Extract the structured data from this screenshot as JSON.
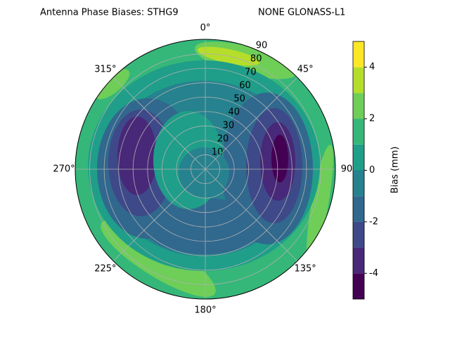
{
  "chart_data": {
    "type": "polar-contour",
    "title": "Antenna Phase Biases: STHG9",
    "subtitle": "NONE GLONASS-L1",
    "rlim": [
      0,
      90
    ],
    "rticks": [
      10,
      20,
      30,
      40,
      50,
      60,
      70,
      80,
      90
    ],
    "thetaticks": [
      {
        "value": 0,
        "label": "0°"
      },
      {
        "value": 45,
        "label": "45°"
      },
      {
        "value": 90,
        "label": "90"
      },
      {
        "value": 135,
        "label": "135°"
      },
      {
        "value": 180,
        "label": "180°"
      },
      {
        "value": 225,
        "label": "225°"
      },
      {
        "value": 270,
        "label": "270°"
      },
      {
        "value": 315,
        "label": "315°"
      }
    ],
    "levels": [
      -5,
      -4,
      -3,
      -2,
      -1,
      0,
      1,
      2,
      3,
      4,
      5
    ],
    "colors": [
      "#440154",
      "#482878",
      "#3e4989",
      "#31688e",
      "#26828e",
      "#1f9e89",
      "#35b779",
      "#6ece58",
      "#b5de2b",
      "#fde725"
    ],
    "colorbar_label": "Bias (mm)",
    "clim": [
      -5,
      5
    ],
    "cticks": [
      -4,
      -2,
      0,
      2,
      4
    ],
    "grid": true
  }
}
